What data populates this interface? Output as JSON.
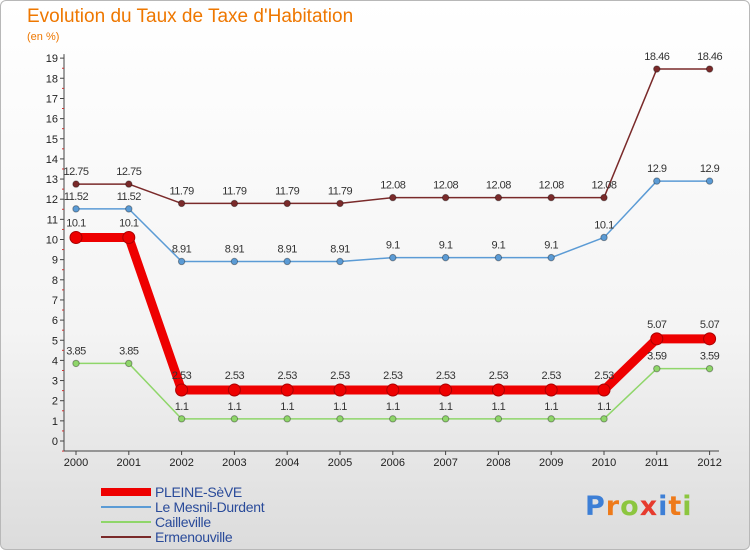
{
  "chart_data": {
    "type": "line",
    "title": "Evolution du Taux de Taxe d'Habitation",
    "ylabel": "(en %)",
    "xlabel": "",
    "x": [
      "2000",
      "2001",
      "2002",
      "2003",
      "2004",
      "2005",
      "2006",
      "2007",
      "2008",
      "2009",
      "2010",
      "2011",
      "2012"
    ],
    "ylim": [
      0,
      19
    ],
    "yticks": [
      0,
      1,
      2,
      3,
      4,
      5,
      6,
      7,
      8,
      9,
      10,
      11,
      12,
      13,
      14,
      15,
      16,
      17,
      18,
      19
    ],
    "grid": false,
    "legend": "bottom-left",
    "series": [
      {
        "name": "PLEINE-SèVE",
        "color": "#ee0000",
        "values": [
          10.1,
          10.1,
          2.53,
          2.53,
          2.53,
          2.53,
          2.53,
          2.53,
          2.53,
          2.53,
          2.53,
          5.07,
          5.07
        ],
        "labels": [
          "10.1",
          "10.1",
          "2.53",
          "2.53",
          "2.53",
          "2.53",
          "2.53",
          "2.53",
          "2.53",
          "2.53",
          "2.53",
          "5.07",
          "5.07"
        ]
      },
      {
        "name": "Le Mesnil-Durdent",
        "color": "#5b9bd5",
        "values": [
          11.52,
          11.52,
          8.91,
          8.91,
          8.91,
          8.91,
          9.1,
          9.1,
          9.1,
          9.1,
          10.1,
          12.9,
          12.9
        ],
        "labels": [
          "11.52",
          "11.52",
          "8.91",
          "8.91",
          "8.91",
          "8.91",
          "9.1",
          "9.1",
          "9.1",
          "9.1",
          "10.1",
          "12.9",
          "12.9"
        ]
      },
      {
        "name": "Cailleville",
        "color": "#8fd66a",
        "values": [
          3.85,
          3.85,
          1.1,
          1.1,
          1.1,
          1.1,
          1.1,
          1.1,
          1.1,
          1.1,
          1.1,
          3.59,
          3.59
        ],
        "labels": [
          "3.85",
          "3.85",
          "1.1",
          "1.1",
          "1.1",
          "1.1",
          "1.1",
          "1.1",
          "1.1",
          "1.1",
          "1.1",
          "3.59",
          "3.59"
        ]
      },
      {
        "name": "Ermenouville",
        "color": "#7a2a2a",
        "values": [
          12.75,
          12.75,
          11.79,
          11.79,
          11.79,
          11.79,
          12.08,
          12.08,
          12.08,
          12.08,
          12.08,
          18.46,
          18.46
        ],
        "labels": [
          "12.75",
          "12.75",
          "11.79",
          "11.79",
          "11.79",
          "11.79",
          "12.08",
          "12.08",
          "12.08",
          "12.08",
          "12.08",
          "18.46",
          "18.46"
        ]
      }
    ]
  },
  "logo": {
    "letters": [
      "P",
      "r",
      "o",
      "x",
      "i",
      "t",
      "i"
    ],
    "colors": [
      "#3d7fd6",
      "#ee7a1a",
      "#8cc63f",
      "#e63b2e",
      "#3d7fd6",
      "#ee7a1a",
      "#8cc63f"
    ]
  }
}
